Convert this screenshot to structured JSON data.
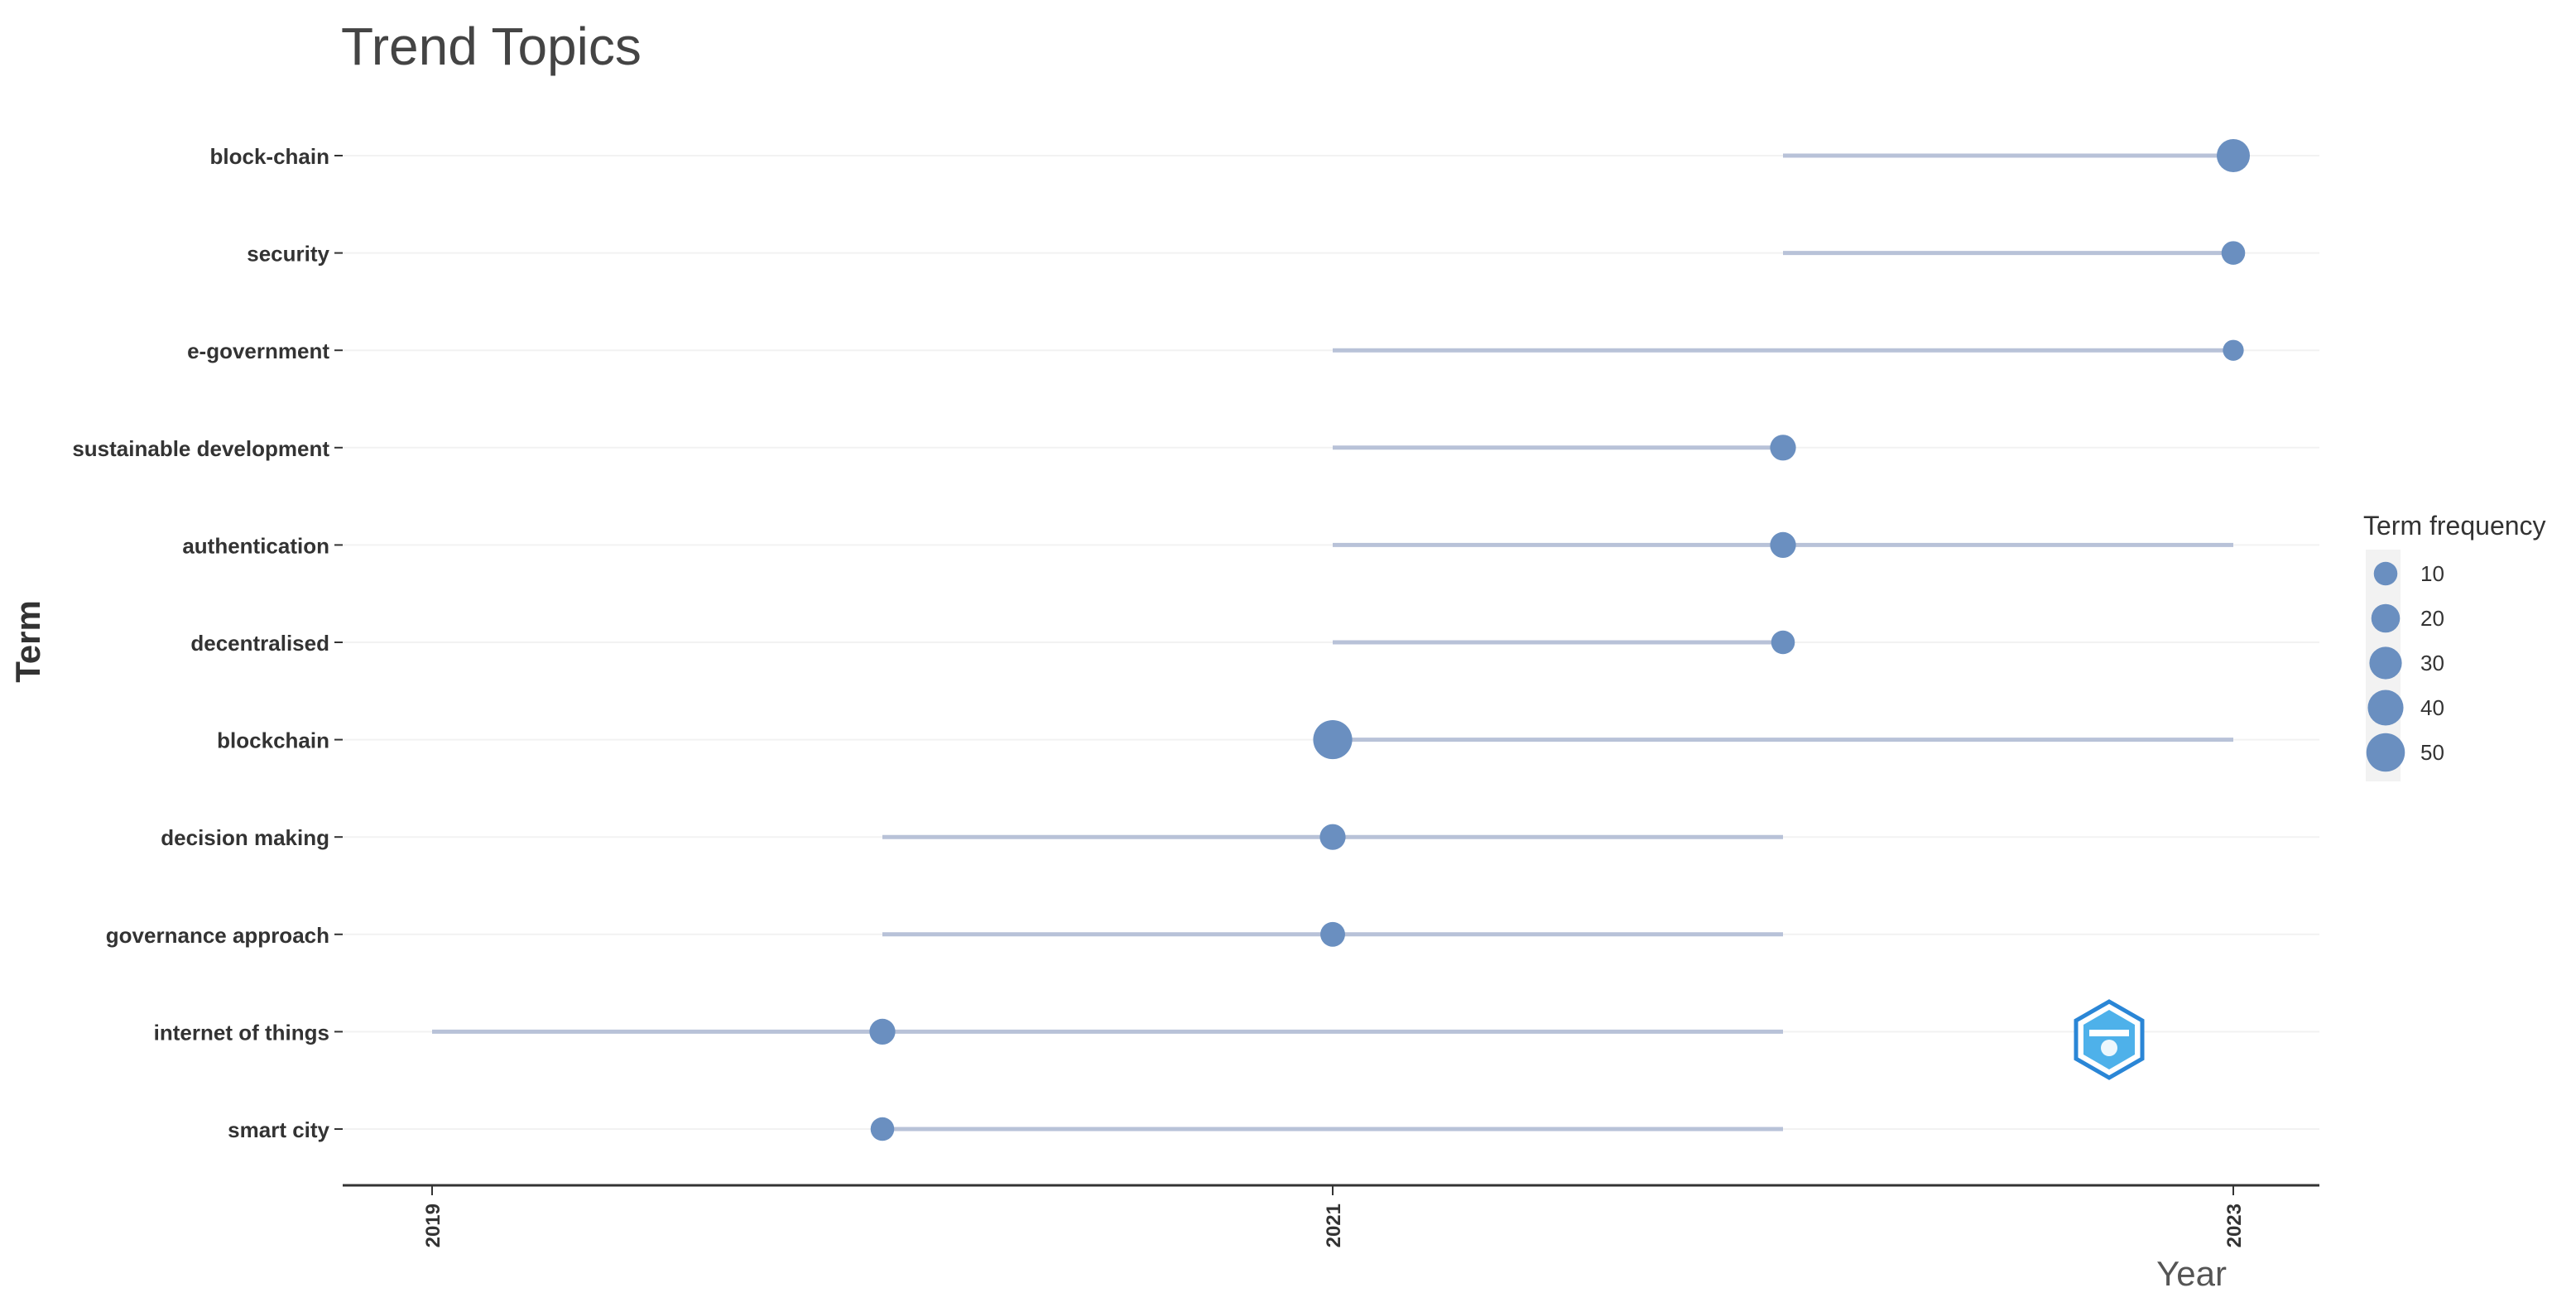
{
  "chart_data": {
    "type": "scatter",
    "title": "Trend Topics",
    "xlabel": "Year",
    "ylabel": "Term",
    "xlim": [
      2018.8,
      2023.2
    ],
    "xticks": [
      2019,
      2021,
      2023
    ],
    "grid": true,
    "legend": {
      "title": "Term frequency",
      "position": "right",
      "sizes": [
        10,
        20,
        30,
        40,
        50
      ]
    },
    "colors": {
      "point": "#6a8fc0",
      "segment": "#b8c2d8",
      "axis": "#333333",
      "grid": "#f2f2f2",
      "text": "#333333",
      "title": "#444444"
    },
    "terms": [
      {
        "term": "block-chain",
        "year_q1": 2022,
        "year_median": 2023,
        "year_q3": 2023,
        "freq": 32
      },
      {
        "term": "security",
        "year_q1": 2022,
        "year_median": 2023,
        "year_q3": 2023,
        "freq": 10
      },
      {
        "term": "e-government",
        "year_q1": 2021,
        "year_median": 2023,
        "year_q3": 2023,
        "freq": 6
      },
      {
        "term": "sustainable development",
        "year_q1": 2021,
        "year_median": 2022,
        "year_q3": 2022,
        "freq": 14
      },
      {
        "term": "authentication",
        "year_q1": 2021,
        "year_median": 2022,
        "year_q3": 2023,
        "freq": 14
      },
      {
        "term": "decentralised",
        "year_q1": 2021,
        "year_median": 2022,
        "year_q3": 2022,
        "freq": 10
      },
      {
        "term": "blockchain",
        "year_q1": 2021,
        "year_median": 2021,
        "year_q3": 2023,
        "freq": 52
      },
      {
        "term": "decision making",
        "year_q1": 2020,
        "year_median": 2021,
        "year_q3": 2022,
        "freq": 14
      },
      {
        "term": "governance approach",
        "year_q1": 2020,
        "year_median": 2021,
        "year_q3": 2022,
        "freq": 12
      },
      {
        "term": "internet of things",
        "year_q1": 2019,
        "year_median": 2020,
        "year_q3": 2022,
        "freq": 14
      },
      {
        "term": "smart city",
        "year_q1": 2020,
        "year_median": 2020,
        "year_q3": 2022,
        "freq": 10
      }
    ]
  }
}
